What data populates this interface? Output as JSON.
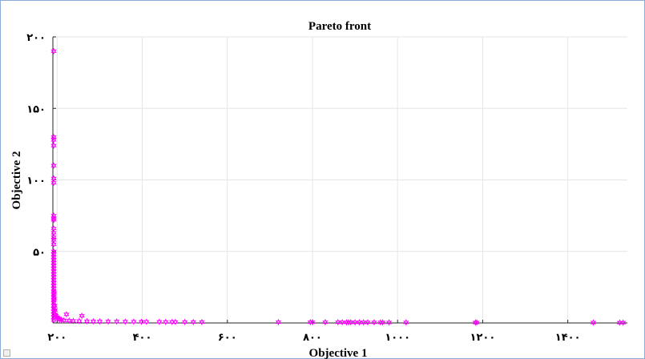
{
  "chart_data": {
    "type": "scatter",
    "title": "Pareto front",
    "xlabel": "Objective 1",
    "ylabel": "Objective 2",
    "xlim": [
      190,
      1540
    ],
    "ylim": [
      0,
      200
    ],
    "x_ticks": [
      200,
      400,
      600,
      800,
      1000,
      1200,
      1400
    ],
    "x_tick_labels": [
      "۲۰۰",
      "۴۰۰",
      "۶۰۰",
      "۸۰۰",
      "۱۰۰۰",
      "۱۲۰۰",
      "۱۴۰۰"
    ],
    "y_ticks": [
      50,
      100,
      150,
      200
    ],
    "y_tick_labels": [
      "۵۰",
      "۱۰۰",
      "۱۵۰",
      "۲۰۰"
    ],
    "grid": true,
    "marker": "hexagram",
    "marker_color": "#ff00ff",
    "points": [
      [
        192,
        190
      ],
      [
        192,
        130
      ],
      [
        192,
        128
      ],
      [
        192,
        124
      ],
      [
        192,
        110
      ],
      [
        192,
        101
      ],
      [
        192,
        98
      ],
      [
        192,
        75
      ],
      [
        192,
        73
      ],
      [
        192,
        72
      ],
      [
        192,
        66
      ],
      [
        192,
        63
      ],
      [
        192,
        60
      ],
      [
        192,
        58
      ],
      [
        192,
        55
      ],
      [
        192,
        50
      ],
      [
        192,
        48
      ],
      [
        192,
        46
      ],
      [
        192,
        44
      ],
      [
        192,
        42
      ],
      [
        192,
        40
      ],
      [
        192,
        38
      ],
      [
        192,
        36
      ],
      [
        192,
        34
      ],
      [
        192,
        32
      ],
      [
        192,
        30
      ],
      [
        192,
        28
      ],
      [
        192,
        26
      ],
      [
        192,
        24
      ],
      [
        192,
        22
      ],
      [
        192,
        20
      ],
      [
        192,
        18
      ],
      [
        192,
        16
      ],
      [
        192,
        14
      ],
      [
        192,
        12
      ],
      [
        192,
        10
      ],
      [
        192,
        8
      ],
      [
        192,
        6
      ],
      [
        192,
        4
      ],
      [
        192,
        2
      ],
      [
        193,
        21
      ],
      [
        193,
        17
      ],
      [
        194,
        12
      ],
      [
        195,
        9
      ],
      [
        196,
        6
      ],
      [
        197,
        5
      ],
      [
        200,
        4
      ],
      [
        203,
        3
      ],
      [
        206,
        2.6
      ],
      [
        210,
        2.2
      ],
      [
        216,
        1.8
      ],
      [
        222,
        6
      ],
      [
        228,
        1.6
      ],
      [
        238,
        1.4
      ],
      [
        252,
        1.3
      ],
      [
        258,
        5
      ],
      [
        270,
        1.2
      ],
      [
        285,
        1.1
      ],
      [
        300,
        1.05
      ],
      [
        320,
        1.0
      ],
      [
        340,
        0.95
      ],
      [
        360,
        0.9
      ],
      [
        380,
        0.85
      ],
      [
        398,
        0.8
      ],
      [
        410,
        0.8
      ],
      [
        440,
        0.75
      ],
      [
        455,
        0.7
      ],
      [
        470,
        0.7
      ],
      [
        478,
        0.7
      ],
      [
        500,
        0.65
      ],
      [
        520,
        0.6
      ],
      [
        540,
        0.6
      ],
      [
        720,
        0.55
      ],
      [
        795,
        0.5
      ],
      [
        800,
        0.5
      ],
      [
        830,
        0.5
      ],
      [
        860,
        0.48
      ],
      [
        870,
        0.46
      ],
      [
        880,
        0.45
      ],
      [
        885,
        0.45
      ],
      [
        890,
        0.44
      ],
      [
        900,
        0.43
      ],
      [
        910,
        0.42
      ],
      [
        920,
        0.41
      ],
      [
        930,
        0.4
      ],
      [
        945,
        0.4
      ],
      [
        960,
        0.38
      ],
      [
        965,
        0.37
      ],
      [
        980,
        0.36
      ],
      [
        1020,
        0.35
      ],
      [
        1183,
        0.3
      ],
      [
        1186,
        0.3
      ],
      [
        1460,
        0.25
      ],
      [
        1522,
        0.2
      ],
      [
        1530,
        0.2
      ]
    ]
  }
}
